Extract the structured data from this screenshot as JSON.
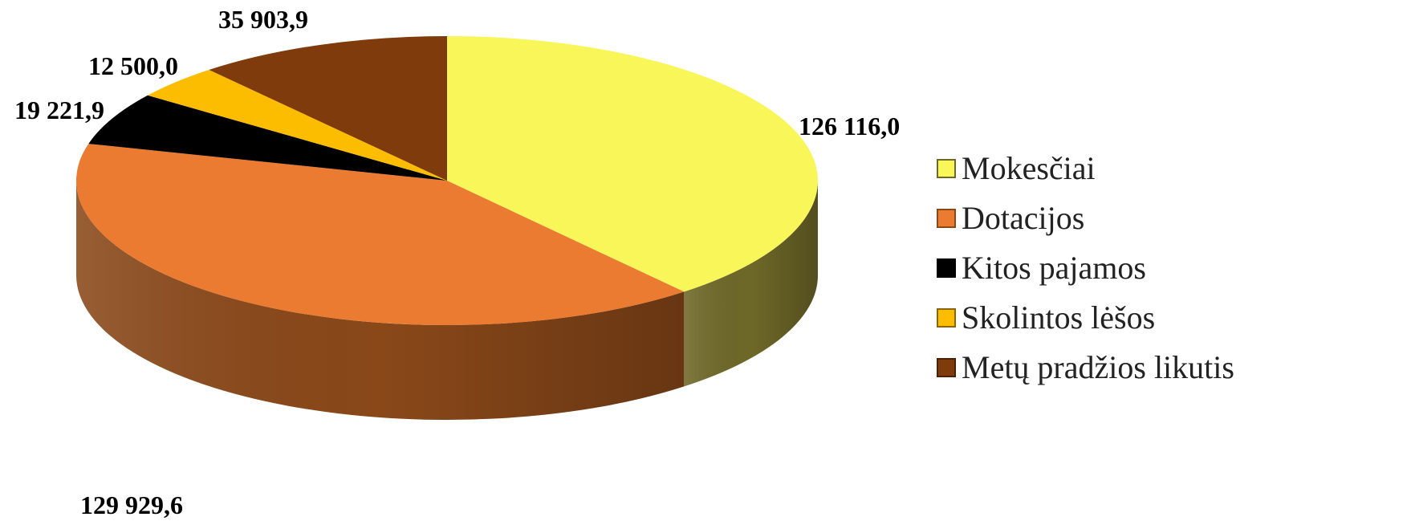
{
  "chart_data": {
    "type": "pie",
    "style": "3d",
    "title": "",
    "legend_position": "right",
    "series": [
      {
        "name": "Mokesčiai",
        "value": 126116.0,
        "label": "126 116,0",
        "color": "#F9F65A",
        "side_color": "#6E6828"
      },
      {
        "name": "Dotacijos",
        "value": 129929.6,
        "label": "129 929,6",
        "color": "#EA7B30",
        "side_color": "#8A4819"
      },
      {
        "name": "Kitos pajamos",
        "value": 19221.9,
        "label": "19 221,9",
        "color": "#000000",
        "side_color": "#000000"
      },
      {
        "name": "Skolintos lėšos",
        "value": 12500.0,
        "label": "12 500,0",
        "color": "#FCBD00",
        "side_color": "#8A6600"
      },
      {
        "name": "Metų pradžios likutis",
        "value": 35903.9,
        "label": "35 903,9",
        "color": "#7F3B0B",
        "side_color": "#4A2006"
      }
    ]
  }
}
